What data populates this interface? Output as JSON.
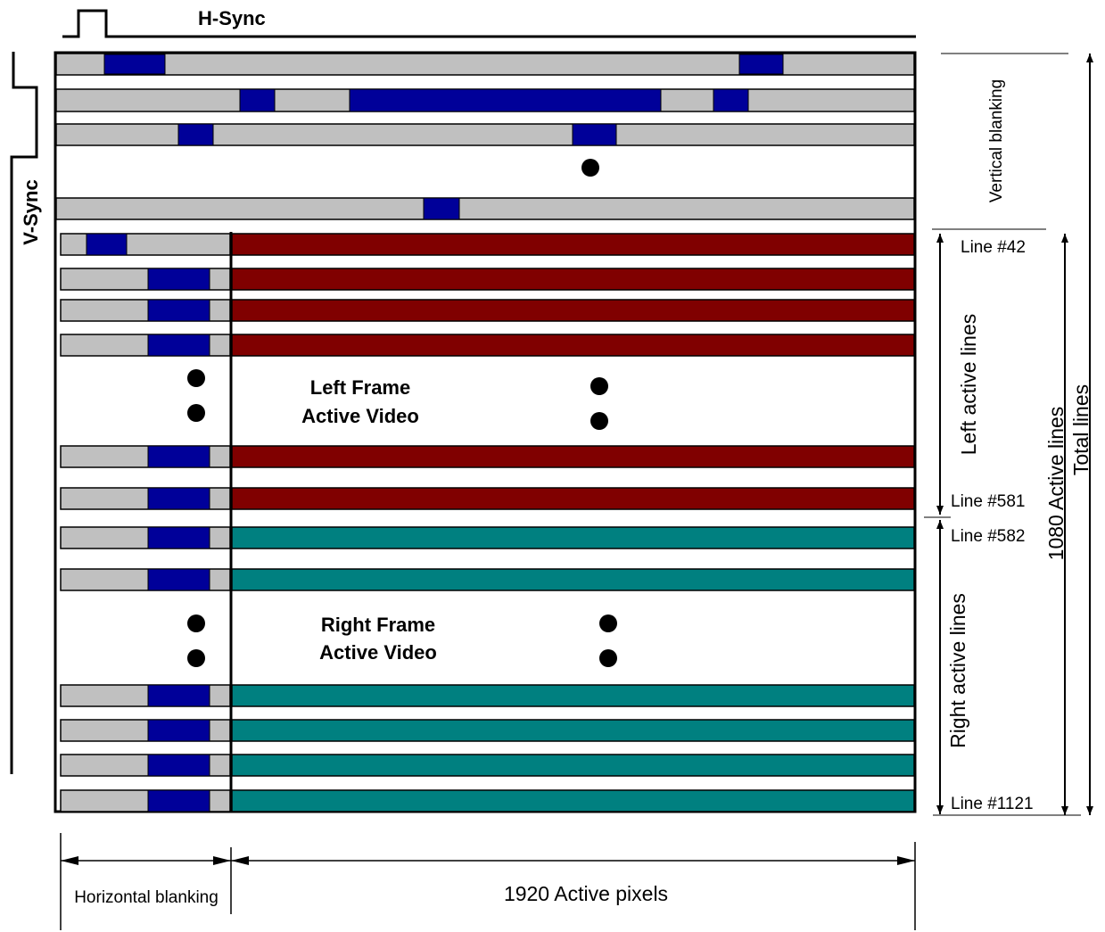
{
  "labels": {
    "hsync": "H-Sync",
    "vsync": "V-Sync",
    "vertical_blanking": "Vertical blanking",
    "line_42": "Line #42",
    "line_581": "Line #581",
    "line_582": "Line #582",
    "line_1121": "Line #1121",
    "left_active_lines": "Left active lines",
    "right_active_lines": "Right active lines",
    "active_lines_1080": "1080 Active lines",
    "total_lines": "Total lines",
    "left_frame_line1": "Left Frame",
    "left_frame_line2": "Active Video",
    "right_frame_line1": "Right Frame",
    "right_frame_line2": "Active Video",
    "horizontal_blanking": "Horizontal blanking",
    "active_pixels": "1920 Active pixels"
  },
  "colors": {
    "blanking_gray": "#c0c0c0",
    "sync_blue": "#000099",
    "left_frame_red": "#800000",
    "right_frame_teal": "#008080",
    "line_black": "#000000"
  }
}
